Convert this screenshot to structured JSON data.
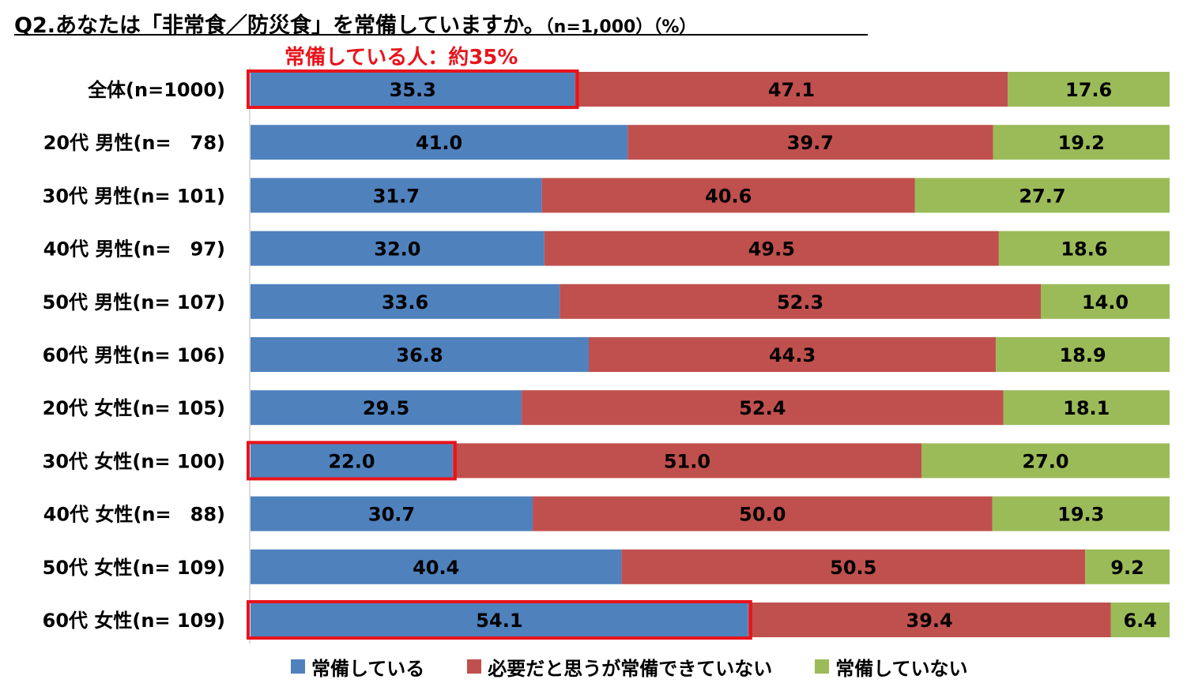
{
  "title": {
    "main": "Q2.あなたは「非常食／防災食」を常備していますか。",
    "unit": "（n=1,000）（%）"
  },
  "annotation": "常備している人：約35%",
  "colors": {
    "series": [
      "#4f81bd",
      "#c0504d",
      "#9bbb59"
    ],
    "highlight": "#e8141c"
  },
  "chart_data": {
    "type": "bar",
    "orientation": "horizontal-stacked-100",
    "categories": [
      "全体(n=1000)",
      "20代 男性(n=　78)",
      "30代 男性(n= 101)",
      "40代 男性(n=　97)",
      "50代 男性(n= 107)",
      "60代 男性(n= 106)",
      "20代 女性(n= 105)",
      "30代 女性(n= 100)",
      "40代 女性(n=　88)",
      "50代 女性(n= 109)",
      "60代 女性(n= 109)"
    ],
    "series": [
      {
        "name": "常備している",
        "values": [
          35.3,
          41.0,
          31.7,
          32.0,
          33.6,
          36.8,
          29.5,
          22.0,
          30.7,
          40.4,
          54.1
        ]
      },
      {
        "name": "必要だと思うが常備できていない",
        "values": [
          47.1,
          39.7,
          40.6,
          49.5,
          52.3,
          44.3,
          52.4,
          51.0,
          50.0,
          50.5,
          39.4
        ]
      },
      {
        "name": "常備していない",
        "values": [
          17.6,
          19.2,
          27.7,
          18.6,
          14.0,
          18.9,
          18.1,
          27.0,
          19.3,
          9.2,
          6.4
        ]
      }
    ],
    "highlighted_rows": [
      0,
      7,
      10
    ],
    "legend_position": "bottom",
    "grid": false
  }
}
